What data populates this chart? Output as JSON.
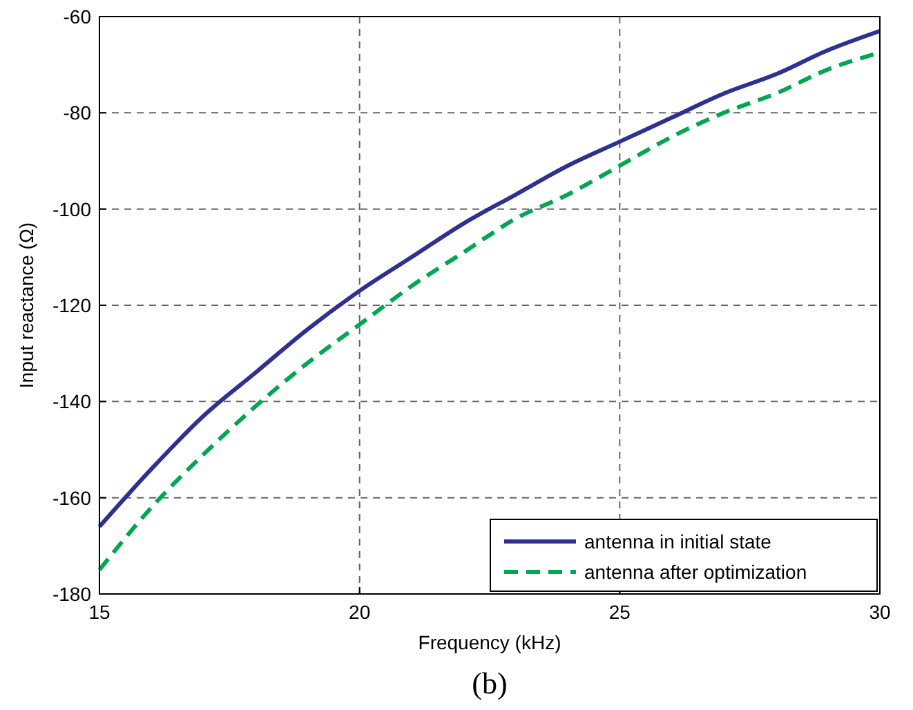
{
  "chart_data": {
    "type": "line",
    "xlabel": "Frequency (kHz)",
    "ylabel": "Input reactance (Ω)",
    "annotations": [
      "(b)"
    ],
    "x": [
      15,
      16,
      17,
      18,
      19,
      20,
      21,
      22,
      23,
      24,
      25,
      26,
      27,
      28,
      29,
      30
    ],
    "series": [
      {
        "name": "antenna in initial state",
        "color": "#2e3192",
        "line_style": "solid",
        "values": [
          -166,
          -154,
          -143,
          -134,
          -125,
          -117,
          -110,
          -103,
          -97,
          -91,
          -86,
          -81,
          -76,
          -72,
          -67,
          -63
        ]
      },
      {
        "name": "antenna after optimization",
        "color": "#00a651",
        "line_style": "dashed",
        "values": [
          -175,
          -162,
          -151,
          -141,
          -132,
          -124,
          -116,
          -109,
          -102,
          -97,
          -91,
          -85,
          -80,
          -76,
          -71,
          -67.5
        ]
      }
    ],
    "xlim": [
      15,
      30
    ],
    "xticks": [
      15,
      20,
      25,
      30
    ],
    "ylim": [
      -180,
      -60
    ],
    "yticks": [
      -180,
      -160,
      -140,
      -120,
      -100,
      -80,
      -60
    ],
    "grid": true,
    "legend": "bottom right"
  }
}
